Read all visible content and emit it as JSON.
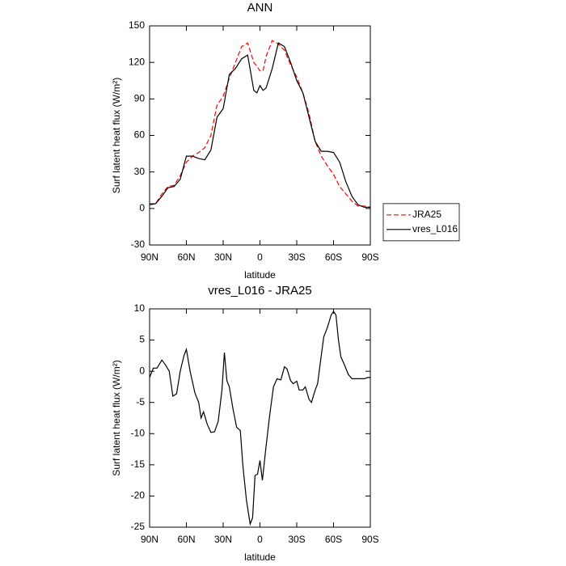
{
  "chart_data": [
    {
      "type": "line",
      "title": "ANN",
      "xlabel": "latitude",
      "ylabel": "Surf latent heat flux (W/m²)",
      "x": [
        90,
        85,
        80,
        75,
        70,
        65,
        60,
        55,
        50,
        45,
        40,
        35,
        30,
        25,
        20,
        15,
        10,
        5,
        2.5,
        0,
        -2.5,
        -5,
        -10,
        -15,
        -20,
        -25,
        -30,
        -35,
        -40,
        -45,
        -50,
        -55,
        -60,
        -65,
        -70,
        -75,
        -80,
        -85,
        -90
      ],
      "series": [
        {
          "name": "JRA25",
          "color": "#ff0000",
          "dash": true,
          "values": [
            4,
            4,
            12,
            18,
            19,
            27,
            38,
            43,
            46,
            50,
            60,
            85,
            92,
            107,
            120,
            133,
            136,
            120,
            117,
            113,
            113,
            125,
            138,
            135,
            130,
            118,
            108,
            95,
            78,
            55,
            43,
            35,
            28,
            18,
            12,
            6,
            2,
            2,
            1
          ]
        },
        {
          "name": "vres_L016",
          "color": "#000000",
          "dash": false,
          "values": [
            3,
            4,
            10,
            17,
            18,
            24,
            43,
            43,
            41,
            40,
            48,
            75,
            82,
            110,
            115,
            123,
            126,
            97,
            95,
            101,
            97,
            99,
            115,
            136,
            133,
            120,
            105,
            95,
            75,
            55,
            47,
            47,
            46,
            38,
            22,
            10,
            3,
            1,
            1
          ]
        }
      ],
      "xlim": [
        90,
        -90
      ],
      "xticks": [
        {
          "value": 90,
          "label": "90N"
        },
        {
          "value": 60,
          "label": "60N"
        },
        {
          "value": 30,
          "label": "30N"
        },
        0,
        {
          "value": -30,
          "label": "30S"
        },
        {
          "value": -60,
          "label": "60S"
        },
        {
          "value": -90,
          "label": "90S"
        }
      ],
      "ylim": [
        -30,
        150
      ],
      "yticks": [
        -30,
        0,
        30,
        60,
        90,
        120,
        150
      ],
      "legend": "outside-right"
    },
    {
      "type": "line",
      "title": "vres_L016 - JRA25",
      "xlabel": "latitude",
      "ylabel": "Surf latent heat flux (W/m²)",
      "x": [
        90,
        87,
        84,
        80,
        77,
        74,
        71,
        68,
        65,
        62,
        60,
        57,
        53,
        50,
        48,
        46,
        43,
        40,
        37,
        34,
        31,
        29,
        27,
        25,
        22,
        19,
        16,
        14,
        11,
        8,
        6,
        4,
        2,
        0,
        -2,
        -5,
        -8,
        -11,
        -14,
        -17,
        -20,
        -22,
        -25,
        -27,
        -30,
        -32,
        -35,
        -37,
        -40,
        -42,
        -45,
        -47,
        -50,
        -52,
        -55,
        -58,
        -60,
        -62,
        -64,
        -66,
        -69,
        -72,
        -75,
        -80,
        -85,
        -88,
        -90
      ],
      "series": [
        {
          "color": "#000000",
          "dash": false,
          "values": [
            -1,
            0.5,
            0.5,
            1.8,
            1,
            0,
            -4,
            -3.6,
            0,
            2.5,
            3.5,
            0,
            -3.5,
            -5,
            -7.5,
            -6.5,
            -8.5,
            -9.8,
            -9.7,
            -8,
            -3,
            3,
            -1.5,
            -2.5,
            -6,
            -9,
            -9.5,
            -15,
            -20.7,
            -24.5,
            -23.5,
            -16.7,
            -16.5,
            -14.3,
            -17.5,
            -12,
            -7,
            -2.5,
            -1.2,
            -1.4,
            0.7,
            0.4,
            -1.5,
            -2,
            -1.6,
            -3,
            -3,
            -2.5,
            -4.5,
            -5,
            -3,
            -2,
            2.5,
            5.5,
            7,
            9,
            9.6,
            9,
            5,
            2.3,
            1,
            -0.5,
            -1.2,
            -1.2,
            -1.2,
            -1,
            -1
          ]
        }
      ],
      "xlim": [
        90,
        -90
      ],
      "xticks": [
        {
          "value": 90,
          "label": "90N"
        },
        {
          "value": 60,
          "label": "60N"
        },
        {
          "value": 30,
          "label": "30N"
        },
        0,
        {
          "value": -30,
          "label": "30S"
        },
        {
          "value": -60,
          "label": "60S"
        },
        {
          "value": -90,
          "label": "90S"
        }
      ],
      "ylim": [
        -25,
        10
      ],
      "yticks": [
        -25,
        -20,
        -15,
        -10,
        -5,
        0,
        5,
        10
      ]
    }
  ]
}
